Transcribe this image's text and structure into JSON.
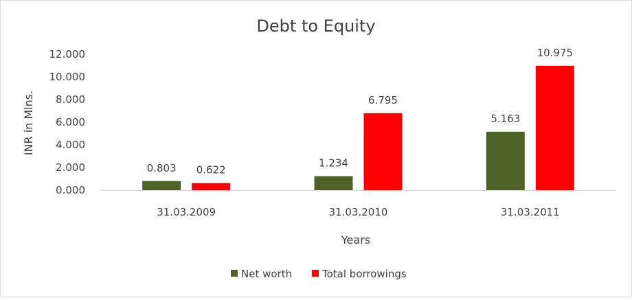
{
  "chart_data": {
    "type": "bar",
    "title": "Debt to Equity",
    "xlabel": "Years",
    "ylabel": "INR in Mlns.",
    "categories": [
      "31.03.2009",
      "31.03.2010",
      "31.03.2011"
    ],
    "series": [
      {
        "name": "Net worth",
        "color": "#4f6228",
        "values": [
          0.803,
          1.234,
          5.163
        ],
        "labels": [
          "0.803",
          "1.234",
          "5.163"
        ]
      },
      {
        "name": "Total borrowings",
        "color": "#ff0000",
        "values": [
          0.622,
          6.795,
          10.975
        ],
        "labels": [
          "0.622",
          "6.795",
          "10.975"
        ]
      }
    ],
    "ylim": [
      0,
      12
    ],
    "yticks": [
      0,
      2,
      4,
      6,
      8,
      10,
      12
    ],
    "ytick_labels": [
      "0.000",
      "2.000",
      "4.000",
      "6.000",
      "8.000",
      "10.000",
      "12.000"
    ],
    "grid": false,
    "legend": "bottom"
  }
}
